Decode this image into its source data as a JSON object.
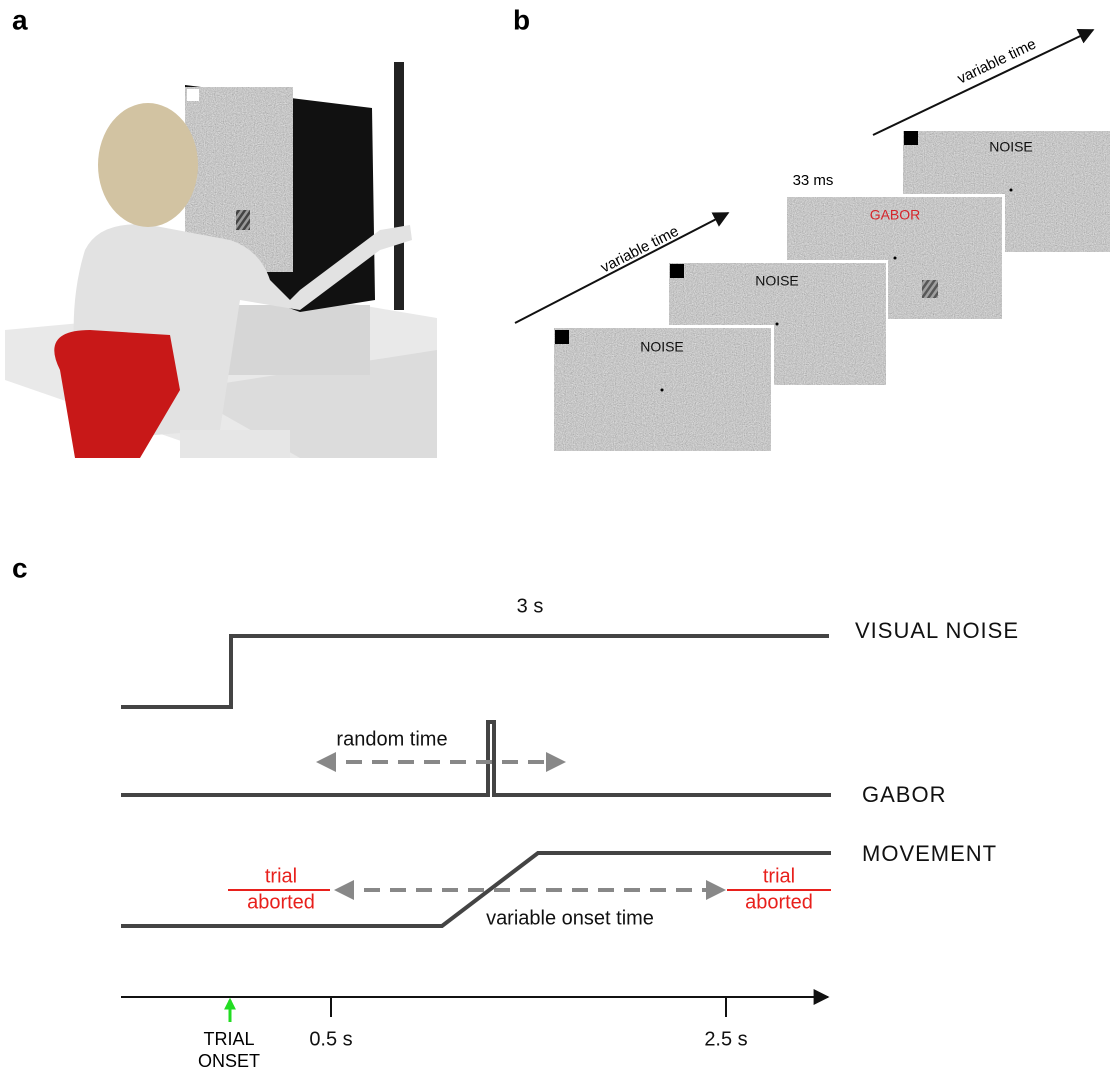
{
  "panels": {
    "a": {
      "label": "a"
    },
    "b": {
      "label": "b",
      "arrows": [
        "variable time",
        "variable time"
      ],
      "timing": "33 ms",
      "screens": [
        "NOISE",
        "NOISE",
        "GABOR",
        "NOISE"
      ]
    },
    "c": {
      "label": "c",
      "duration": "3 s",
      "rows": [
        "VISUAL NOISE",
        "GABOR",
        "MOVEMENT"
      ],
      "random_time": "random time",
      "variable_onset": "variable onset time",
      "trial_aborted": [
        [
          "trial",
          "aborted"
        ],
        [
          "trial",
          "aborted"
        ]
      ],
      "trial_onset": [
        "TRIAL",
        "ONSET"
      ],
      "ticks": [
        "0.5 s",
        "2.5 s"
      ]
    }
  }
}
